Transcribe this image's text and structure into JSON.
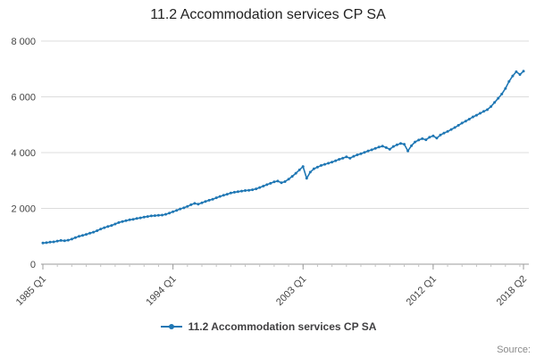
{
  "title": "11.2 Accommodation services CP SA",
  "legend": {
    "label": "11.2 Accommodation services CP SA"
  },
  "source": "Source:",
  "colors": {
    "line": "#1f77b4",
    "grid": "#dcdcdc",
    "axis": "#9b9b9b",
    "text": "#444444"
  },
  "chart_data": {
    "type": "line",
    "title": "11.2 Accommodation services CP SA",
    "xlabel": "",
    "ylabel": "",
    "ylim": [
      0,
      8000
    ],
    "grid": "horizontal",
    "legend_position": "bottom",
    "x_unit": "quarter",
    "x_start": "1985 Q1",
    "x_end": "2018 Q2",
    "yticks": [
      {
        "value": 0,
        "label": "0"
      },
      {
        "value": 2000,
        "label": "2 000"
      },
      {
        "value": 4000,
        "label": "4 000"
      },
      {
        "value": 6000,
        "label": "6 000"
      },
      {
        "value": 8000,
        "label": "8 000"
      }
    ],
    "xticks": [
      {
        "index": 0,
        "label": "1985 Q1"
      },
      {
        "index": 36,
        "label": "1994 Q1"
      },
      {
        "index": 72,
        "label": "2003 Q1"
      },
      {
        "index": 108,
        "label": "2012 Q1"
      },
      {
        "index": 133,
        "label": "2018 Q2"
      }
    ],
    "series": [
      {
        "name": "11.2 Accommodation services CP SA",
        "values": [
          760,
          770,
          790,
          800,
          830,
          850,
          840,
          860,
          900,
          950,
          1000,
          1030,
          1070,
          1110,
          1150,
          1200,
          1260,
          1310,
          1350,
          1390,
          1440,
          1490,
          1530,
          1560,
          1590,
          1610,
          1640,
          1660,
          1690,
          1710,
          1730,
          1740,
          1750,
          1760,
          1790,
          1830,
          1880,
          1930,
          1980,
          2020,
          2070,
          2130,
          2180,
          2150,
          2200,
          2250,
          2290,
          2330,
          2380,
          2430,
          2470,
          2510,
          2550,
          2580,
          2600,
          2620,
          2640,
          2650,
          2670,
          2700,
          2750,
          2800,
          2850,
          2900,
          2950,
          2980,
          2920,
          2960,
          3050,
          3150,
          3260,
          3380,
          3500,
          3080,
          3300,
          3420,
          3480,
          3540,
          3580,
          3620,
          3660,
          3710,
          3760,
          3800,
          3850,
          3800,
          3870,
          3920,
          3960,
          4010,
          4060,
          4100,
          4150,
          4200,
          4230,
          4180,
          4120,
          4220,
          4280,
          4330,
          4300,
          4060,
          4250,
          4380,
          4450,
          4500,
          4460,
          4550,
          4600,
          4520,
          4630,
          4700,
          4760,
          4830,
          4900,
          4980,
          5060,
          5130,
          5200,
          5280,
          5340,
          5410,
          5480,
          5540,
          5650,
          5800,
          5950,
          6100,
          6300,
          6550,
          6750,
          6900,
          6800,
          6920
        ]
      }
    ]
  }
}
